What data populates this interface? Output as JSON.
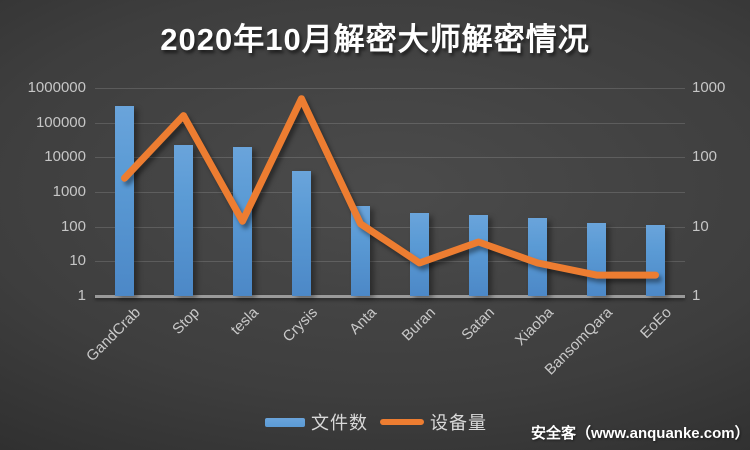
{
  "title": "2020年10月解密大师解密情况",
  "watermark": "安全客（www.anquanke.com）",
  "legend": [
    {
      "label": "文件数",
      "color": "#5B9BD5",
      "marker": "bar"
    },
    {
      "label": "设备量",
      "color": "#ED7D31",
      "marker": "line"
    }
  ],
  "chart_data": {
    "type": "bar",
    "subtype": "combo bar+line with dual logarithmic y-axes",
    "title": "2020年10月解密大师解密情况",
    "categories": [
      "GandCrab",
      "Stop",
      "tesla",
      "Crysis",
      "Anta",
      "Buran",
      "Satan",
      "Xiaoba",
      "BansomQara",
      "EoEo"
    ],
    "series": [
      {
        "name": "文件数",
        "type": "bar",
        "axis": "left",
        "color": "#5B9BD5",
        "values": [
          300000,
          22000,
          20000,
          4000,
          400,
          250,
          220,
          180,
          130,
          110
        ]
      },
      {
        "name": "设备量",
        "type": "line",
        "axis": "right",
        "color": "#ED7D31",
        "values": [
          50,
          400,
          12,
          700,
          11,
          3,
          6,
          3,
          2,
          2
        ]
      }
    ],
    "left_axis": {
      "scale": "log",
      "range": [
        1,
        1000000
      ],
      "ticks": [
        "1000000",
        "100000",
        "10000",
        "1000",
        "100",
        "10",
        "1"
      ]
    },
    "right_axis": {
      "scale": "log",
      "range": [
        1,
        1000
      ],
      "ticks": [
        "1000",
        "100",
        "10",
        "1"
      ]
    },
    "grid": "horizontal",
    "legend_position": "bottom"
  }
}
